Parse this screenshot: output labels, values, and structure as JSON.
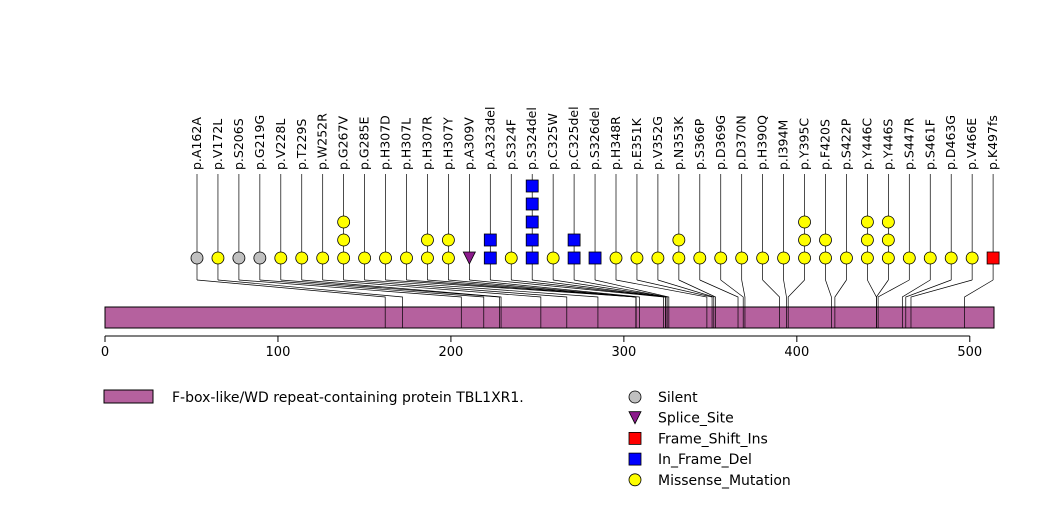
{
  "chart_data": {
    "type": "lollipop",
    "protein": {
      "name": "F-box-like/WD repeat-containing protein TBL1XR1.",
      "length": 514,
      "color": "#b5619e"
    },
    "axis": {
      "xlim": [
        0,
        514
      ],
      "ticks": [
        0,
        100,
        200,
        300,
        400,
        500
      ]
    },
    "mutation_types": [
      {
        "key": "Silent",
        "label": "Silent",
        "color": "#c0c0c0",
        "shape": "circle"
      },
      {
        "key": "Splice_Site",
        "label": "Splice_Site",
        "color": "#8b1a8b",
        "shape": "triangle-down"
      },
      {
        "key": "Frame_Shift_Ins",
        "label": "Frame_Shift_Ins",
        "color": "#ff0000",
        "shape": "square"
      },
      {
        "key": "In_Frame_Del",
        "label": "In_Frame_Del",
        "color": "#0000ff",
        "shape": "square"
      },
      {
        "key": "Missense_Mutation",
        "label": "Missense_Mutation",
        "color": "#ffff00",
        "shape": "circle"
      }
    ],
    "mutations": [
      {
        "label": "p.A162A",
        "pos": 162,
        "markers": [
          "Silent"
        ]
      },
      {
        "label": "p.V172L",
        "pos": 172,
        "markers": [
          "Missense_Mutation"
        ]
      },
      {
        "label": "p.S206S",
        "pos": 206,
        "markers": [
          "Silent"
        ]
      },
      {
        "label": "p.G219G",
        "pos": 219,
        "markers": [
          "Silent"
        ]
      },
      {
        "label": "p.V228L",
        "pos": 228,
        "markers": [
          "Missense_Mutation"
        ]
      },
      {
        "label": "p.T229S",
        "pos": 229,
        "markers": [
          "Missense_Mutation"
        ]
      },
      {
        "label": "p.W252R",
        "pos": 252,
        "markers": [
          "Missense_Mutation"
        ]
      },
      {
        "label": "p.G267V",
        "pos": 267,
        "markers": [
          "Missense_Mutation",
          "Missense_Mutation",
          "Missense_Mutation"
        ]
      },
      {
        "label": "p.G285E",
        "pos": 285,
        "markers": [
          "Missense_Mutation"
        ]
      },
      {
        "label": "p.H307D",
        "pos": 307,
        "markers": [
          "Missense_Mutation"
        ]
      },
      {
        "label": "p.H307L",
        "pos": 307,
        "markers": [
          "Missense_Mutation"
        ]
      },
      {
        "label": "p.H307R",
        "pos": 307,
        "markers": [
          "Missense_Mutation",
          "Missense_Mutation"
        ]
      },
      {
        "label": "p.H307Y",
        "pos": 307,
        "markers": [
          "Missense_Mutation",
          "Missense_Mutation"
        ]
      },
      {
        "label": "p.A309V",
        "pos": 309,
        "markers": [
          "Splice_Site"
        ]
      },
      {
        "label": "p.A323del",
        "pos": 323,
        "markers": [
          "In_Frame_Del",
          "In_Frame_Del"
        ]
      },
      {
        "label": "p.S324F",
        "pos": 324,
        "markers": [
          "Missense_Mutation"
        ]
      },
      {
        "label": "p.S324del",
        "pos": 324,
        "markers": [
          "In_Frame_Del",
          "In_Frame_Del",
          "In_Frame_Del",
          "In_Frame_Del",
          "In_Frame_Del"
        ]
      },
      {
        "label": "p.C325W",
        "pos": 325,
        "markers": [
          "Missense_Mutation"
        ]
      },
      {
        "label": "p.C325del",
        "pos": 325,
        "markers": [
          "In_Frame_Del",
          "In_Frame_Del"
        ]
      },
      {
        "label": "p.S326del",
        "pos": 326,
        "markers": [
          "In_Frame_Del"
        ]
      },
      {
        "label": "p.H348R",
        "pos": 348,
        "markers": [
          "Missense_Mutation"
        ]
      },
      {
        "label": "p.E351K",
        "pos": 351,
        "markers": [
          "Missense_Mutation"
        ]
      },
      {
        "label": "p.V352G",
        "pos": 352,
        "markers": [
          "Missense_Mutation"
        ]
      },
      {
        "label": "p.N353K",
        "pos": 353,
        "markers": [
          "Missense_Mutation",
          "Missense_Mutation"
        ]
      },
      {
        "label": "p.S366P",
        "pos": 366,
        "markers": [
          "Missense_Mutation"
        ]
      },
      {
        "label": "p.D369G",
        "pos": 369,
        "markers": [
          "Missense_Mutation"
        ]
      },
      {
        "label": "p.D370N",
        "pos": 370,
        "markers": [
          "Missense_Mutation"
        ]
      },
      {
        "label": "p.H390Q",
        "pos": 390,
        "markers": [
          "Missense_Mutation"
        ]
      },
      {
        "label": "p.I394M",
        "pos": 394,
        "markers": [
          "Missense_Mutation"
        ]
      },
      {
        "label": "p.Y395C",
        "pos": 395,
        "markers": [
          "Missense_Mutation",
          "Missense_Mutation",
          "Missense_Mutation"
        ]
      },
      {
        "label": "p.F420S",
        "pos": 420,
        "markers": [
          "Missense_Mutation",
          "Missense_Mutation"
        ]
      },
      {
        "label": "p.S422P",
        "pos": 422,
        "markers": [
          "Missense_Mutation"
        ]
      },
      {
        "label": "p.Y446C",
        "pos": 446,
        "markers": [
          "Missense_Mutation",
          "Missense_Mutation",
          "Missense_Mutation"
        ]
      },
      {
        "label": "p.Y446S",
        "pos": 446,
        "markers": [
          "Missense_Mutation",
          "Missense_Mutation",
          "Missense_Mutation"
        ]
      },
      {
        "label": "p.S447R",
        "pos": 447,
        "markers": [
          "Missense_Mutation"
        ]
      },
      {
        "label": "p.S461F",
        "pos": 461,
        "markers": [
          "Missense_Mutation"
        ]
      },
      {
        "label": "p.D463G",
        "pos": 463,
        "markers": [
          "Missense_Mutation"
        ]
      },
      {
        "label": "p.V466E",
        "pos": 466,
        "markers": [
          "Missense_Mutation"
        ]
      },
      {
        "label": "p.K497fs",
        "pos": 497,
        "markers": [
          "Frame_Shift_Ins"
        ]
      }
    ]
  }
}
